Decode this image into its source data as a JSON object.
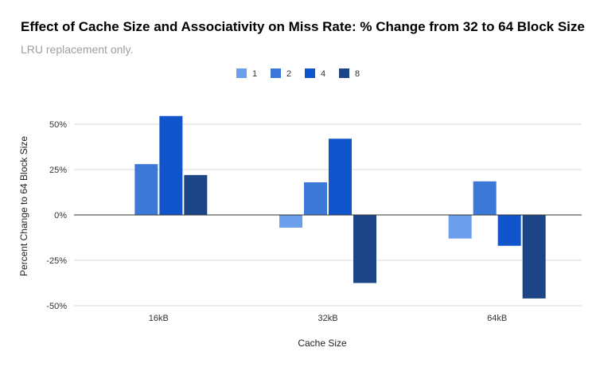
{
  "chart_data": {
    "type": "bar",
    "title": "Effect of Cache Size and Associativity on Miss Rate: % Change from 32 to 64 Block Size",
    "subtitle": "LRU replacement only.",
    "xlabel": "Cache Size",
    "ylabel": "Percent Change to 64 Block Size",
    "categories": [
      "16kB",
      "32kB",
      "64kB"
    ],
    "series": [
      {
        "name": "1",
        "color": "#6d9eeb",
        "values": [
          0,
          -7,
          -13
        ]
      },
      {
        "name": "2",
        "color": "#3c78d8",
        "values": [
          28,
          18,
          18.5
        ]
      },
      {
        "name": "4",
        "color": "#1155cc",
        "values": [
          54.5,
          42,
          -17
        ]
      },
      {
        "name": "8",
        "color": "#1c4587",
        "values": [
          22,
          -37.5,
          -46
        ]
      }
    ],
    "ylim": [
      -50,
      50
    ],
    "yticks": [
      50,
      25,
      0,
      -25,
      -50
    ],
    "ytick_labels": [
      "50%",
      "25%",
      "0%",
      "-25%",
      "-50%"
    ],
    "grid": true,
    "legend_position": "top-center"
  }
}
